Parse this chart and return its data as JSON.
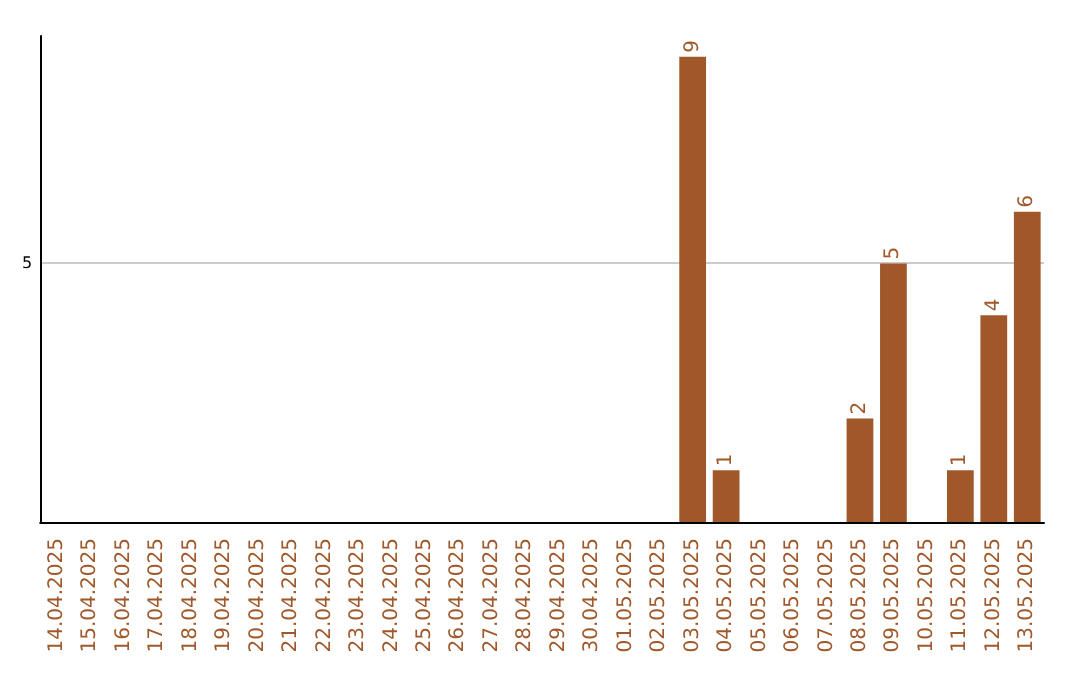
{
  "chart_data": {
    "type": "bar",
    "categories": [
      "14.04.2025",
      "15.04.2025",
      "16.04.2025",
      "17.04.2025",
      "18.04.2025",
      "19.04.2025",
      "20.04.2025",
      "21.04.2025",
      "22.04.2025",
      "23.04.2025",
      "24.04.2025",
      "25.04.2025",
      "26.04.2025",
      "27.04.2025",
      "28.04.2025",
      "29.04.2025",
      "30.04.2025",
      "01.05.2025",
      "02.05.2025",
      "03.05.2025",
      "04.05.2025",
      "05.05.2025",
      "06.05.2025",
      "07.05.2025",
      "08.05.2025",
      "09.05.2025",
      "10.05.2025",
      "11.05.2025",
      "12.05.2025",
      "13.05.2025"
    ],
    "values": [
      null,
      null,
      null,
      null,
      null,
      null,
      null,
      null,
      null,
      null,
      null,
      null,
      null,
      null,
      null,
      null,
      null,
      null,
      null,
      9,
      1,
      null,
      null,
      null,
      2,
      5,
      null,
      1,
      4,
      6
    ],
    "color": "#a0582a",
    "ylim": [
      0,
      9.4
    ],
    "yticks": [
      5
    ],
    "grid": "y",
    "data_labels": true
  }
}
